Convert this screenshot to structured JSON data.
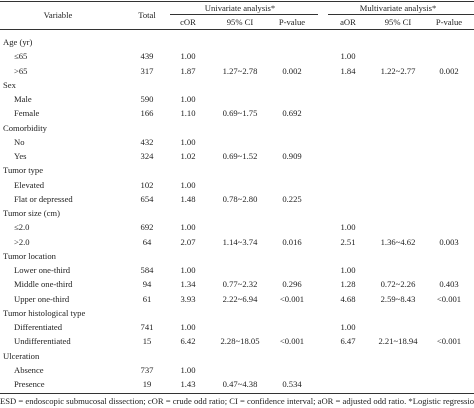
{
  "header": {
    "variable": "Variable",
    "total": "Total",
    "univariate": "Univariate analysis*",
    "multivariate": "Multivariate analysis*",
    "cor": "cOR",
    "cor_ci": "95% CI",
    "cor_p": "P-value",
    "aor": "aOR",
    "aor_ci": "95% CI",
    "aor_p": "P-value"
  },
  "sections": [
    {
      "title": "Age (yr)",
      "rows": [
        {
          "label": "≤65",
          "total": 439,
          "cor": "1.00",
          "aor": "1.00"
        },
        {
          "label": ">65",
          "total": 317,
          "cor": "1.87",
          "cor_ci": "1.27~2.78",
          "cor_p": "0.002",
          "aor": "1.84",
          "aor_ci": "1.22~2.77",
          "aor_p": "0.002"
        }
      ]
    },
    {
      "title": "Sex",
      "rows": [
        {
          "label": "Male",
          "total": 590,
          "cor": "1.00"
        },
        {
          "label": "Female",
          "total": 166,
          "cor": "1.10",
          "cor_ci": "0.69~1.75",
          "cor_p": "0.692"
        }
      ]
    },
    {
      "title": "Comorbidity",
      "rows": [
        {
          "label": "No",
          "total": 432,
          "cor": "1.00"
        },
        {
          "label": "Yes",
          "total": 324,
          "cor": "1.02",
          "cor_ci": "0.69~1.52",
          "cor_p": "0.909"
        }
      ]
    },
    {
      "title": "Tumor type",
      "rows": [
        {
          "label": "Elevated",
          "total": 102,
          "cor": "1.00"
        },
        {
          "label": "Flat or depressed",
          "total": 654,
          "cor": "1.48",
          "cor_ci": "0.78~2.80",
          "cor_p": "0.225"
        }
      ]
    },
    {
      "title": "Tumor size (cm)",
      "rows": [
        {
          "label": "≤2.0",
          "total": 692,
          "cor": "1.00",
          "aor": "1.00"
        },
        {
          "label": ">2.0",
          "total": 64,
          "cor": "2.07",
          "cor_ci": "1.14~3.74",
          "cor_p": "0.016",
          "aor": "2.51",
          "aor_ci": "1.36~4.62",
          "aor_p": "0.003"
        }
      ]
    },
    {
      "title": "Tumor location",
      "rows": [
        {
          "label": "Lower one-third",
          "total": 584,
          "cor": "1.00",
          "aor": "1.00"
        },
        {
          "label": "Middle one-third",
          "total": 94,
          "cor": "1.34",
          "cor_ci": "0.77~2.32",
          "cor_p": "0.296",
          "aor": "1.28",
          "aor_ci": "0.72~2.26",
          "aor_p": "0.403"
        },
        {
          "label": "Upper one-third",
          "total": 61,
          "cor": "3.93",
          "cor_ci": "2.22~6.94",
          "cor_p": "<0.001",
          "aor": "4.68",
          "aor_ci": "2.59~8.43",
          "aor_p": "<0.001"
        }
      ]
    },
    {
      "title": "Tumor histological type",
      "rows": [
        {
          "label": "Differentiated",
          "total": 741,
          "cor": "1.00",
          "aor": "1.00"
        },
        {
          "label": "Undifferentiated",
          "total": 15,
          "cor": "6.42",
          "cor_ci": "2.28~18.05",
          "cor_p": "<0.001",
          "aor": "6.47",
          "aor_ci": "2.21~18.94",
          "aor_p": "<0.001"
        }
      ]
    },
    {
      "title": "Ulceration",
      "rows": [
        {
          "label": "Absence",
          "total": 737,
          "cor": "1.00"
        },
        {
          "label": "Presence",
          "total": 19,
          "cor": "1.43",
          "cor_ci": "0.47~4.38",
          "cor_p": "0.534"
        }
      ]
    }
  ],
  "footnote": "ESD = endoscopic submucosal dissection; cOR = crude odd ratio; CI = confidence interval; aOR = adjusted odd ratio. *Logistic regression analysis."
}
